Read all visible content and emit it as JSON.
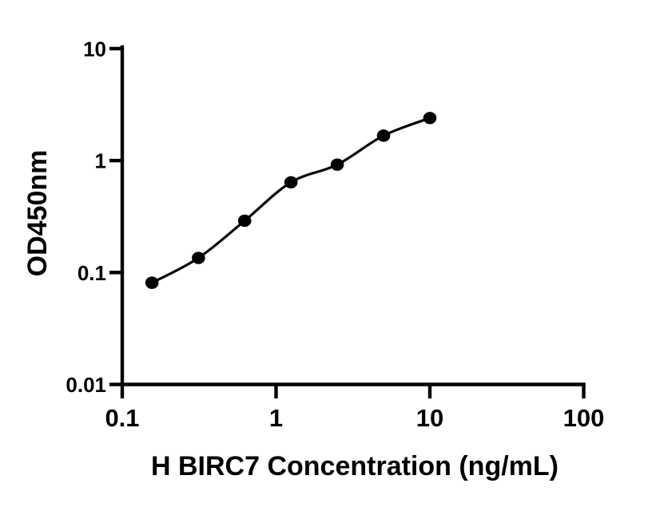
{
  "figure": {
    "background_color": "#ffffff",
    "ink_color": "#000000"
  },
  "chart_data": {
    "type": "scatter",
    "title": "",
    "xlabel": "H BIRC7 Concentration (ng/mL)",
    "ylabel": "OD450nm",
    "x_scale": "log10",
    "y_scale": "log10",
    "xlim": [
      0.1,
      100
    ],
    "ylim": [
      0.01,
      10
    ],
    "grid": false,
    "legend": false,
    "x_ticks": [
      {
        "value": 0.1,
        "label": "0.1"
      },
      {
        "value": 1,
        "label": "1"
      },
      {
        "value": 10,
        "label": "10"
      },
      {
        "value": 100,
        "label": "100"
      }
    ],
    "y_ticks": [
      {
        "value": 0.01,
        "label": "0.01"
      },
      {
        "value": 0.1,
        "label": "0.1"
      },
      {
        "value": 1,
        "label": "1"
      },
      {
        "value": 10,
        "label": "10"
      }
    ],
    "series": [
      {
        "marker": "filled-circle",
        "line": "smooth-fit",
        "color": "#000000",
        "x": [
          0.156,
          0.313,
          0.625,
          1.25,
          2.5,
          5,
          10
        ],
        "y": [
          0.081,
          0.135,
          0.29,
          0.64,
          0.92,
          1.67,
          2.4
        ]
      }
    ]
  }
}
